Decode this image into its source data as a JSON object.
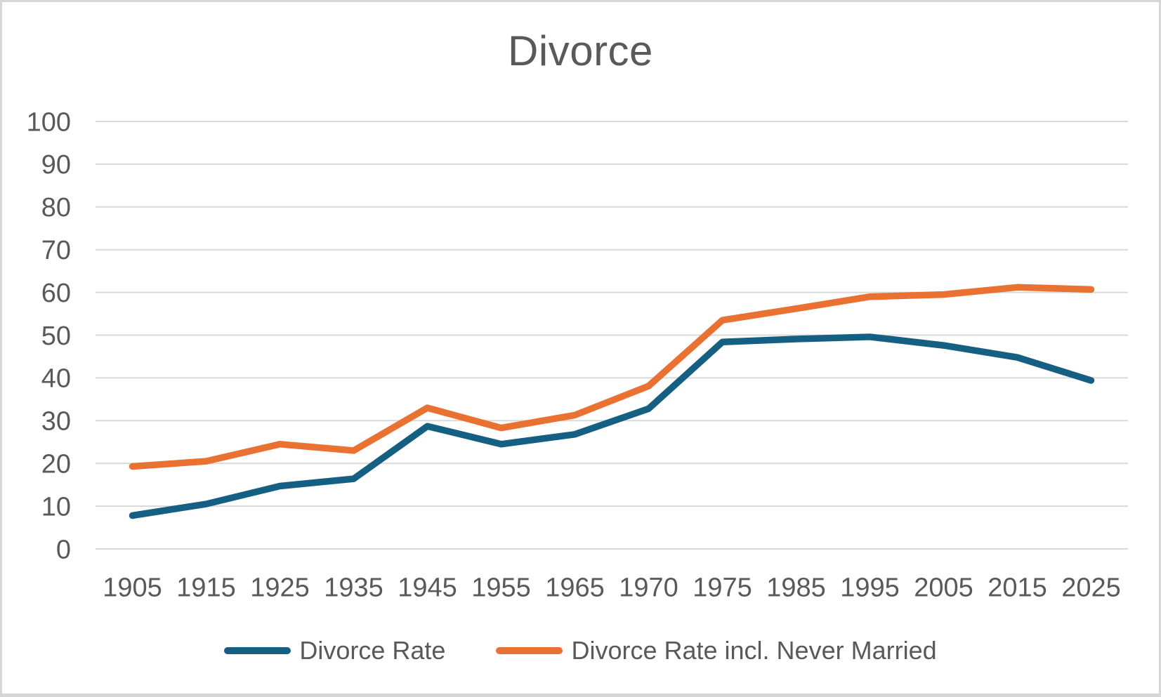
{
  "page": {
    "background_color": "#ffffff",
    "frame_border_color": "#d6d6d6"
  },
  "chart_data": {
    "type": "line",
    "title": "Divorce",
    "categories": [
      "1905",
      "1915",
      "1925",
      "1935",
      "1945",
      "1955",
      "1965",
      "1970",
      "1975",
      "1985",
      "1995",
      "2005",
      "2015",
      "2025"
    ],
    "series": [
      {
        "name": "Divorce Rate",
        "slug": "divorce-rate",
        "color": "#156082",
        "values": [
          7.8,
          10.5,
          14.7,
          16.4,
          28.7,
          24.5,
          26.8,
          32.8,
          48.4,
          49.1,
          49.6,
          47.6,
          44.8,
          39.4
        ]
      },
      {
        "name": "Divorce Rate incl. Never Married",
        "slug": "divorce-rate-incl-never-married",
        "color": "#E97132",
        "values": [
          19.3,
          20.5,
          24.5,
          23.0,
          33.0,
          28.3,
          31.3,
          38.1,
          53.5,
          56.2,
          59.0,
          59.5,
          61.2,
          60.7
        ]
      }
    ],
    "xlabel": "",
    "ylabel": "",
    "ylim": [
      0,
      100
    ],
    "y_tick_step": 10,
    "y_tick_labels": [
      "0",
      "10",
      "20",
      "30",
      "40",
      "50",
      "60",
      "70",
      "80",
      "90",
      "100"
    ],
    "grid": true,
    "gridline_color": "#d9d9d9",
    "text_color": "#595959",
    "legend_position": "bottom"
  }
}
